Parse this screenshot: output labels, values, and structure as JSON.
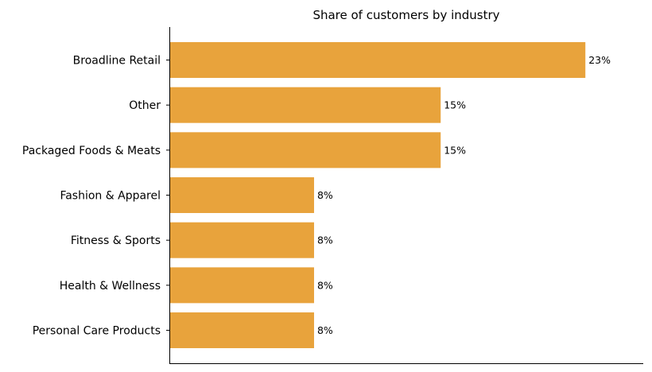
{
  "chart_data": {
    "type": "bar",
    "orientation": "horizontal",
    "title": "Share of customers by industry",
    "xlabel": "",
    "ylabel": "",
    "categories": [
      "Broadline Retail",
      "Other",
      "Packaged Foods & Meats",
      "Fashion & Apparel",
      "Fitness & Sports",
      "Health & Wellness",
      "Personal Care Products"
    ],
    "values": [
      23,
      15,
      15,
      8,
      8,
      8,
      8
    ],
    "value_labels": [
      "23%",
      "15%",
      "15%",
      "8%",
      "8%",
      "8%",
      "8%"
    ],
    "xlim": [
      0,
      26.2
    ],
    "grid": false,
    "legend": "none",
    "bar_color": "#E8A33C",
    "visible_axes": [
      "left",
      "bottom"
    ],
    "x_ticks_shown": false
  }
}
